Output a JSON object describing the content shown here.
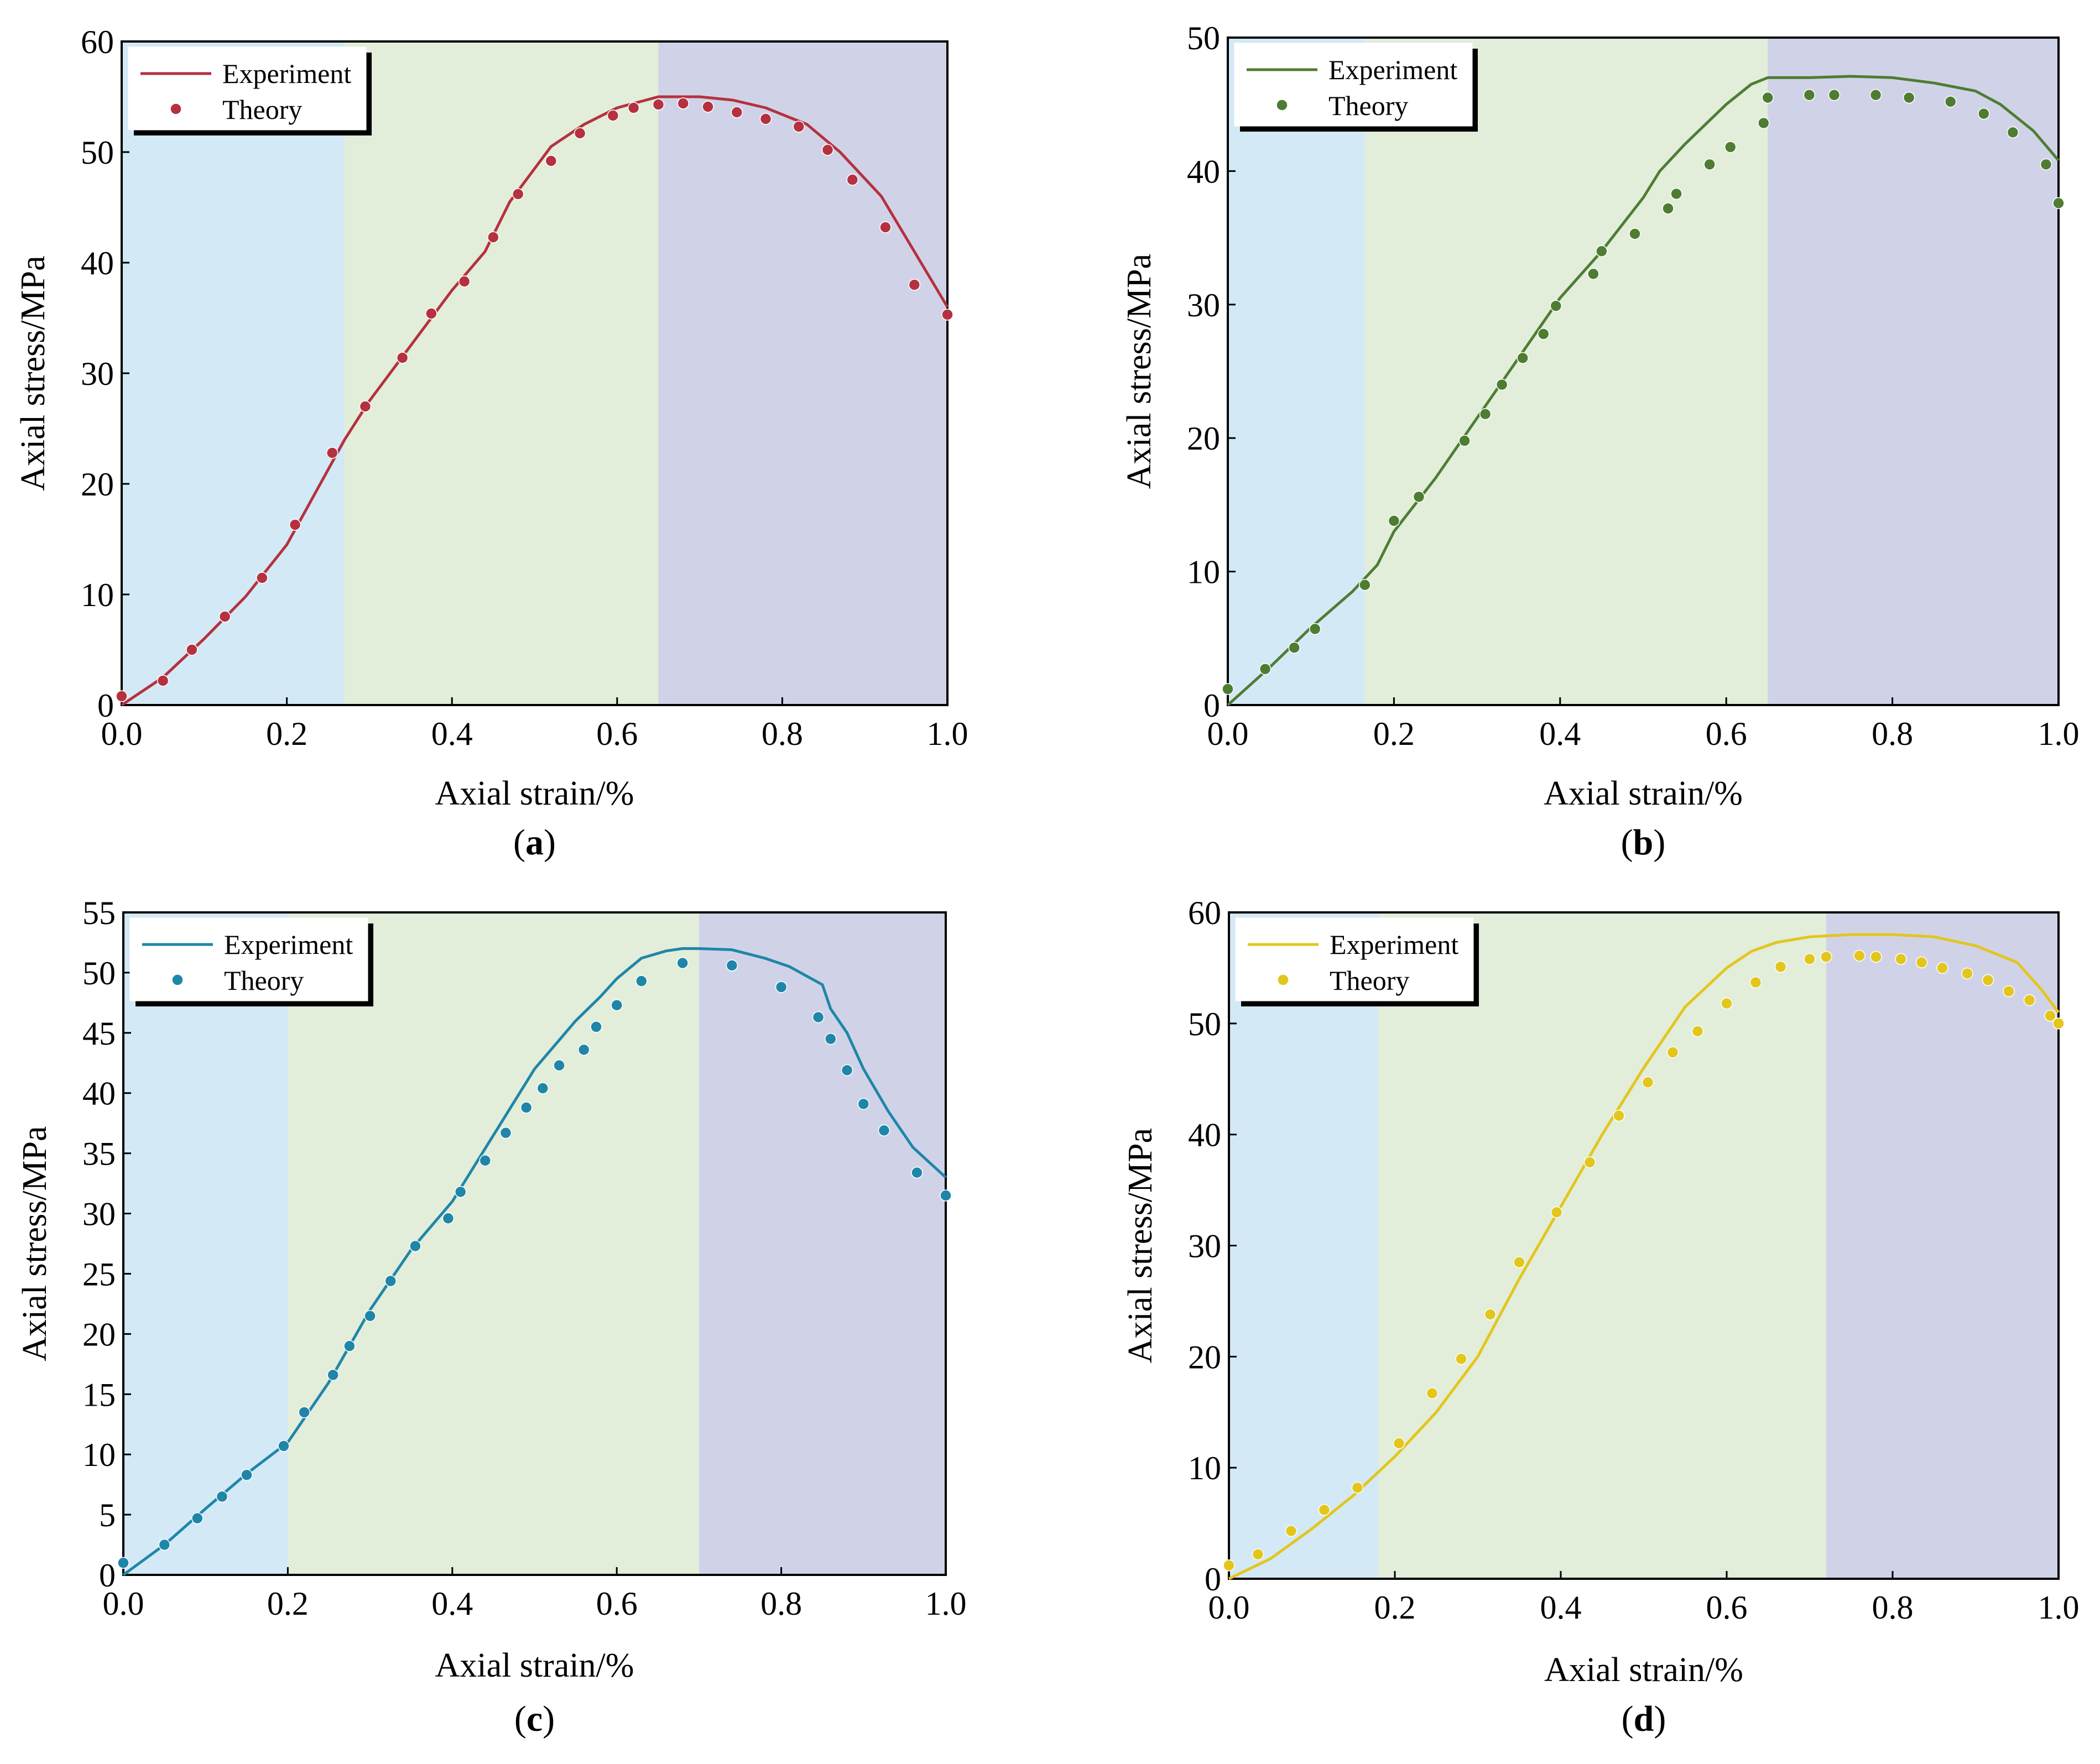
{
  "figure": {
    "colors": {
      "region_elastic": "#d3e9f6",
      "region_plastic": "#e2edda",
      "region_failure": "#d0d3e8"
    }
  },
  "chart_data": [
    {
      "type": "line",
      "panel_label": "a",
      "title": "",
      "xlabel": "Axial strain/%",
      "ylabel": "Axial stress/MPa",
      "xlim": [
        0,
        1.0
      ],
      "ylim": [
        0,
        60
      ],
      "xticks": [
        0.0,
        0.2,
        0.4,
        0.6,
        0.8,
        1.0
      ],
      "xtick_labels": [
        "0.0",
        "0.2",
        "0.4",
        "0.6",
        "0.8",
        "1.0"
      ],
      "yticks": [
        0,
        10,
        20,
        30,
        40,
        50,
        60
      ],
      "ytick_labels": [
        "0",
        "10",
        "20",
        "30",
        "40",
        "50",
        "60"
      ],
      "legend_position": "top-left",
      "regions": [
        [
          0,
          0.27
        ],
        [
          0.27,
          0.65
        ],
        [
          0.65,
          1.0
        ]
      ],
      "series": [
        {
          "name": "Experiment",
          "kind": "line",
          "color": "#b5313f",
          "x": [
            0,
            0.05,
            0.1,
            0.15,
            0.2,
            0.27,
            0.3,
            0.35,
            0.4,
            0.44,
            0.47,
            0.52,
            0.56,
            0.6,
            0.65,
            0.7,
            0.74,
            0.78,
            0.83,
            0.87,
            0.92,
            0.96,
            1.0
          ],
          "y": [
            0,
            2.5,
            6,
            9.8,
            14.5,
            24,
            27.5,
            32.5,
            37.5,
            41,
            45.5,
            50.5,
            52.5,
            54,
            55,
            55,
            54.7,
            54,
            52.5,
            50,
            46,
            41,
            36
          ]
        },
        {
          "name": "Theory",
          "kind": "scatter",
          "color": "#b5313f",
          "x": [
            0.0,
            0.05,
            0.085,
            0.125,
            0.17,
            0.21,
            0.255,
            0.295,
            0.34,
            0.375,
            0.415,
            0.45,
            0.48,
            0.52,
            0.555,
            0.595,
            0.62,
            0.65,
            0.68,
            0.71,
            0.745,
            0.78,
            0.82,
            0.855,
            0.885,
            0.925,
            0.96,
            1.0
          ],
          "y": [
            0.8,
            2.2,
            5,
            8,
            11.5,
            16.3,
            22.8,
            27,
            31.4,
            35.4,
            38.3,
            42.3,
            46.2,
            49.2,
            51.7,
            53.3,
            54,
            54.3,
            54.4,
            54.1,
            53.6,
            53,
            52.3,
            50.2,
            47.5,
            43.2,
            38,
            35.3
          ]
        }
      ]
    },
    {
      "type": "line",
      "panel_label": "b",
      "title": "",
      "xlabel": "Axial strain/%",
      "ylabel": "Axial stress/MPa",
      "xlim": [
        0,
        1.0
      ],
      "ylim": [
        0,
        50
      ],
      "xticks": [
        0.0,
        0.2,
        0.4,
        0.6,
        0.8,
        1.0
      ],
      "xtick_labels": [
        "0.0",
        "0.2",
        "0.4",
        "0.6",
        "0.8",
        "1.0"
      ],
      "yticks": [
        0,
        10,
        20,
        30,
        40,
        50
      ],
      "ytick_labels": [
        "0",
        "10",
        "20",
        "30",
        "40",
        "50"
      ],
      "legend_position": "top-left",
      "regions": [
        [
          0,
          0.165
        ],
        [
          0.165,
          0.65
        ],
        [
          0.65,
          1.0
        ]
      ],
      "series": [
        {
          "name": "Experiment",
          "kind": "line",
          "color": "#4e7d32",
          "x": [
            0,
            0.05,
            0.1,
            0.15,
            0.18,
            0.2,
            0.25,
            0.3,
            0.35,
            0.4,
            0.45,
            0.5,
            0.52,
            0.55,
            0.6,
            0.63,
            0.65,
            0.7,
            0.75,
            0.8,
            0.85,
            0.9,
            0.93,
            0.97,
            1.0
          ],
          "y": [
            0,
            2.8,
            5.8,
            8.5,
            10.5,
            13,
            17,
            21.5,
            26,
            30.5,
            34,
            38,
            40,
            42,
            45,
            46.5,
            47,
            47,
            47.1,
            47,
            46.6,
            46,
            45,
            43,
            40.8
          ]
        },
        {
          "name": "Theory",
          "kind": "scatter",
          "color": "#4e7d32",
          "x": [
            0.0,
            0.045,
            0.08,
            0.105,
            0.165,
            0.2,
            0.23,
            0.285,
            0.31,
            0.33,
            0.355,
            0.38,
            0.395,
            0.44,
            0.45,
            0.49,
            0.53,
            0.54,
            0.58,
            0.605,
            0.645,
            0.65,
            0.7,
            0.73,
            0.78,
            0.82,
            0.87,
            0.91,
            0.945,
            0.985,
            1.0
          ],
          "y": [
            1.2,
            2.7,
            4.3,
            5.7,
            9,
            13.8,
            15.6,
            19.8,
            21.8,
            24,
            26,
            27.8,
            29.9,
            32.3,
            34,
            35.3,
            37.2,
            38.3,
            40.5,
            41.8,
            43.6,
            45.5,
            45.7,
            45.7,
            45.7,
            45.5,
            45.2,
            44.3,
            42.9,
            40.5,
            37.6
          ]
        }
      ]
    },
    {
      "type": "line",
      "panel_label": "c",
      "title": "",
      "xlabel": "Axial strain/%",
      "ylabel": "Axial stress/MPa",
      "xlim": [
        0,
        1.0
      ],
      "ylim": [
        0,
        55
      ],
      "xticks": [
        0.0,
        0.2,
        0.4,
        0.6,
        0.8,
        1.0
      ],
      "xtick_labels": [
        "0.0",
        "0.2",
        "0.4",
        "0.6",
        "0.8",
        "1.0"
      ],
      "yticks": [
        0,
        5,
        10,
        15,
        20,
        25,
        30,
        35,
        40,
        45,
        50,
        55
      ],
      "ytick_labels": [
        "0",
        "5",
        "10",
        "15",
        "20",
        "25",
        "30",
        "35",
        "40",
        "45",
        "50",
        "55"
      ],
      "legend_position": "top-left",
      "regions": [
        [
          0,
          0.2
        ],
        [
          0.2,
          0.7
        ],
        [
          0.7,
          1.0
        ]
      ],
      "series": [
        {
          "name": "Experiment",
          "kind": "line",
          "color": "#1f86a8",
          "x": [
            0,
            0.05,
            0.1,
            0.15,
            0.2,
            0.25,
            0.3,
            0.35,
            0.4,
            0.45,
            0.5,
            0.55,
            0.58,
            0.6,
            0.63,
            0.66,
            0.68,
            0.7,
            0.74,
            0.78,
            0.81,
            0.85,
            0.86,
            0.88,
            0.9,
            0.93,
            0.96,
            1.0
          ],
          "y": [
            0,
            2.5,
            5.5,
            8.4,
            11,
            16,
            22,
            27,
            31,
            36.5,
            42,
            46,
            48,
            49.5,
            51.2,
            51.8,
            52,
            52,
            51.9,
            51.2,
            50.5,
            49,
            47,
            45,
            42,
            38.5,
            35.5,
            33
          ]
        },
        {
          "name": "Theory",
          "kind": "scatter",
          "color": "#1f86a8",
          "x": [
            0.0,
            0.05,
            0.09,
            0.12,
            0.15,
            0.195,
            0.22,
            0.255,
            0.275,
            0.3,
            0.325,
            0.355,
            0.395,
            0.41,
            0.44,
            0.465,
            0.49,
            0.51,
            0.53,
            0.56,
            0.575,
            0.6,
            0.63,
            0.68,
            0.74,
            0.8,
            0.845,
            0.86,
            0.88,
            0.9,
            0.925,
            0.965,
            1.0
          ],
          "y": [
            1,
            2.5,
            4.7,
            6.5,
            8.3,
            10.7,
            13.5,
            16.6,
            19,
            21.5,
            24.4,
            27.3,
            29.6,
            31.8,
            34.4,
            36.7,
            38.8,
            40.4,
            42.3,
            43.6,
            45.5,
            47.3,
            49.3,
            50.8,
            50.6,
            48.8,
            46.3,
            44.5,
            41.9,
            39.1,
            36.9,
            33.4,
            31.5
          ]
        }
      ]
    },
    {
      "type": "line",
      "panel_label": "d",
      "title": "",
      "xlabel": "Axial strain/%",
      "ylabel": "Axial stress/MPa",
      "xlim": [
        0,
        1.0
      ],
      "ylim": [
        0,
        60
      ],
      "xticks": [
        0.0,
        0.2,
        0.4,
        0.6,
        0.8,
        1.0
      ],
      "xtick_labels": [
        "0.0",
        "0.2",
        "0.4",
        "0.6",
        "0.8",
        "1.0"
      ],
      "yticks": [
        0,
        10,
        20,
        30,
        40,
        50,
        60
      ],
      "ytick_labels": [
        "0",
        "10",
        "20",
        "30",
        "40",
        "50",
        "60"
      ],
      "legend_position": "top-left",
      "regions": [
        [
          0,
          0.18
        ],
        [
          0.18,
          0.72
        ],
        [
          0.72,
          1.0
        ]
      ],
      "series": [
        {
          "name": "Experiment",
          "kind": "line",
          "color": "#e3c61c",
          "x": [
            0,
            0.05,
            0.1,
            0.15,
            0.2,
            0.25,
            0.3,
            0.35,
            0.4,
            0.45,
            0.5,
            0.55,
            0.6,
            0.63,
            0.66,
            0.7,
            0.75,
            0.8,
            0.85,
            0.9,
            0.95,
            0.98,
            1.0
          ],
          "y": [
            0,
            1.8,
            4.5,
            7.5,
            11,
            15,
            20,
            27,
            33.5,
            40,
            46,
            51.5,
            55,
            56.5,
            57.3,
            57.8,
            58,
            58,
            57.8,
            57,
            55.5,
            53,
            51
          ]
        },
        {
          "name": "Theory",
          "kind": "scatter",
          "color": "#e3c61c",
          "x": [
            0.0,
            0.035,
            0.075,
            0.115,
            0.155,
            0.205,
            0.245,
            0.28,
            0.315,
            0.35,
            0.395,
            0.435,
            0.47,
            0.505,
            0.535,
            0.565,
            0.6,
            0.635,
            0.665,
            0.7,
            0.72,
            0.76,
            0.78,
            0.81,
            0.835,
            0.86,
            0.89,
            0.915,
            0.94,
            0.965,
            0.99,
            1.0
          ],
          "y": [
            1.2,
            2.2,
            4.3,
            6.2,
            8.2,
            12.2,
            16.7,
            19.8,
            23.8,
            28.5,
            33,
            37.5,
            41.7,
            44.7,
            47.4,
            49.3,
            51.8,
            53.7,
            55.1,
            55.8,
            56,
            56.1,
            56,
            55.8,
            55.5,
            55,
            54.5,
            53.9,
            52.9,
            52.1,
            50.7,
            50
          ]
        }
      ]
    }
  ]
}
